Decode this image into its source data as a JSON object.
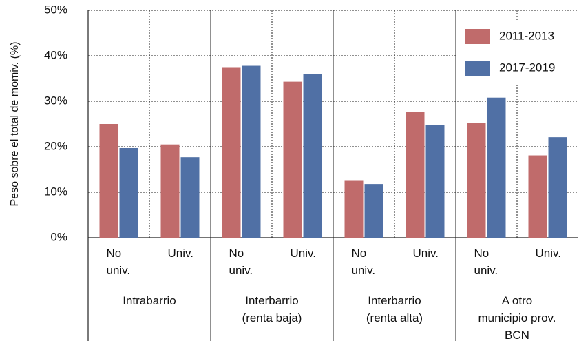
{
  "chart_data": {
    "type": "bar",
    "y_label": "Peso sobre el total de momiv. (%)",
    "categories": [
      "No univ.",
      "Univ.",
      "No univ.",
      "Univ.",
      "No univ.",
      "Univ.",
      "No univ.",
      "Univ."
    ],
    "groups": [
      "Intrabarrio",
      "Interbarrio (renta baja)",
      "Interbarrio (renta alta)",
      "A otro municipio prov. BCN"
    ],
    "series": [
      {
        "name": "2011-2013",
        "color": "#c06b6b",
        "values": [
          25,
          20.5,
          37.5,
          34.3,
          12.5,
          27.6,
          25.3,
          18.1
        ]
      },
      {
        "name": "2017-2019",
        "color": "#5070a5",
        "values": [
          19.7,
          17.7,
          37.8,
          36,
          11.8,
          24.8,
          30.8,
          22.1
        ]
      }
    ],
    "ylim": [
      0,
      50
    ],
    "yticks": [
      {
        "value": 0,
        "label": "0%"
      },
      {
        "value": 10,
        "label": "10%"
      },
      {
        "value": 20,
        "label": "20%"
      },
      {
        "value": 30,
        "label": "30%"
      },
      {
        "value": 40,
        "label": "40%"
      },
      {
        "value": 50,
        "label": "50%"
      }
    ],
    "grid": true,
    "legend": "upper right"
  }
}
